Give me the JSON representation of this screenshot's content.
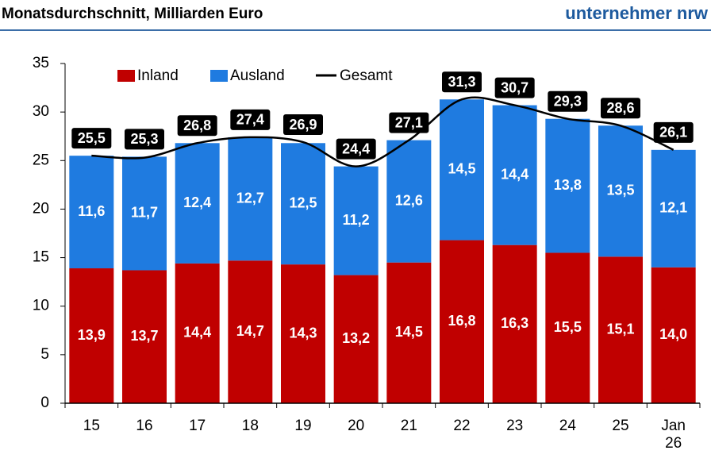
{
  "header": {
    "title": "Monatsdurchschnitt, Milliarden Euro",
    "brand": "unternehmer nrw"
  },
  "chart_data": {
    "type": "bar",
    "stacked": true,
    "categories": [
      "15",
      "16",
      "17",
      "18",
      "19",
      "20",
      "21",
      "22",
      "23",
      "24",
      "25",
      "Jan 26"
    ],
    "series": [
      {
        "name": "Inland",
        "color": "#c00000",
        "values": [
          13.9,
          13.7,
          14.4,
          14.7,
          14.3,
          13.2,
          14.5,
          16.8,
          16.3,
          15.5,
          15.1,
          14.0
        ],
        "value_labels": [
          "13,9",
          "13,7",
          "14,4",
          "14,7",
          "14,3",
          "13,2",
          "14,5",
          "16,8",
          "16,3",
          "15,5",
          "15,1",
          "14,0"
        ]
      },
      {
        "name": "Ausland",
        "color": "#1f7be0",
        "values": [
          11.6,
          11.7,
          12.4,
          12.7,
          12.5,
          11.2,
          12.6,
          14.5,
          14.4,
          13.8,
          13.5,
          12.1
        ],
        "value_labels": [
          "11,6",
          "11,7",
          "12,4",
          "12,7",
          "12,5",
          "11,2",
          "12,6",
          "14,5",
          "14,4",
          "13,8",
          "13,5",
          "12,1"
        ]
      },
      {
        "name": "Gesamt",
        "type": "line",
        "color": "#000000",
        "values": [
          25.5,
          25.3,
          26.8,
          27.4,
          26.9,
          24.4,
          27.1,
          31.3,
          30.7,
          29.3,
          28.6,
          26.1
        ],
        "value_labels": [
          "25,5",
          "25,3",
          "26,8",
          "27,4",
          "26,9",
          "24,4",
          "27,1",
          "31,3",
          "30,7",
          "29,3",
          "28,6",
          "26,1"
        ]
      }
    ],
    "ylim": [
      0,
      35
    ],
    "yticks": [
      0,
      5,
      10,
      15,
      20,
      25,
      30,
      35
    ],
    "grid": false,
    "legend": "top"
  }
}
